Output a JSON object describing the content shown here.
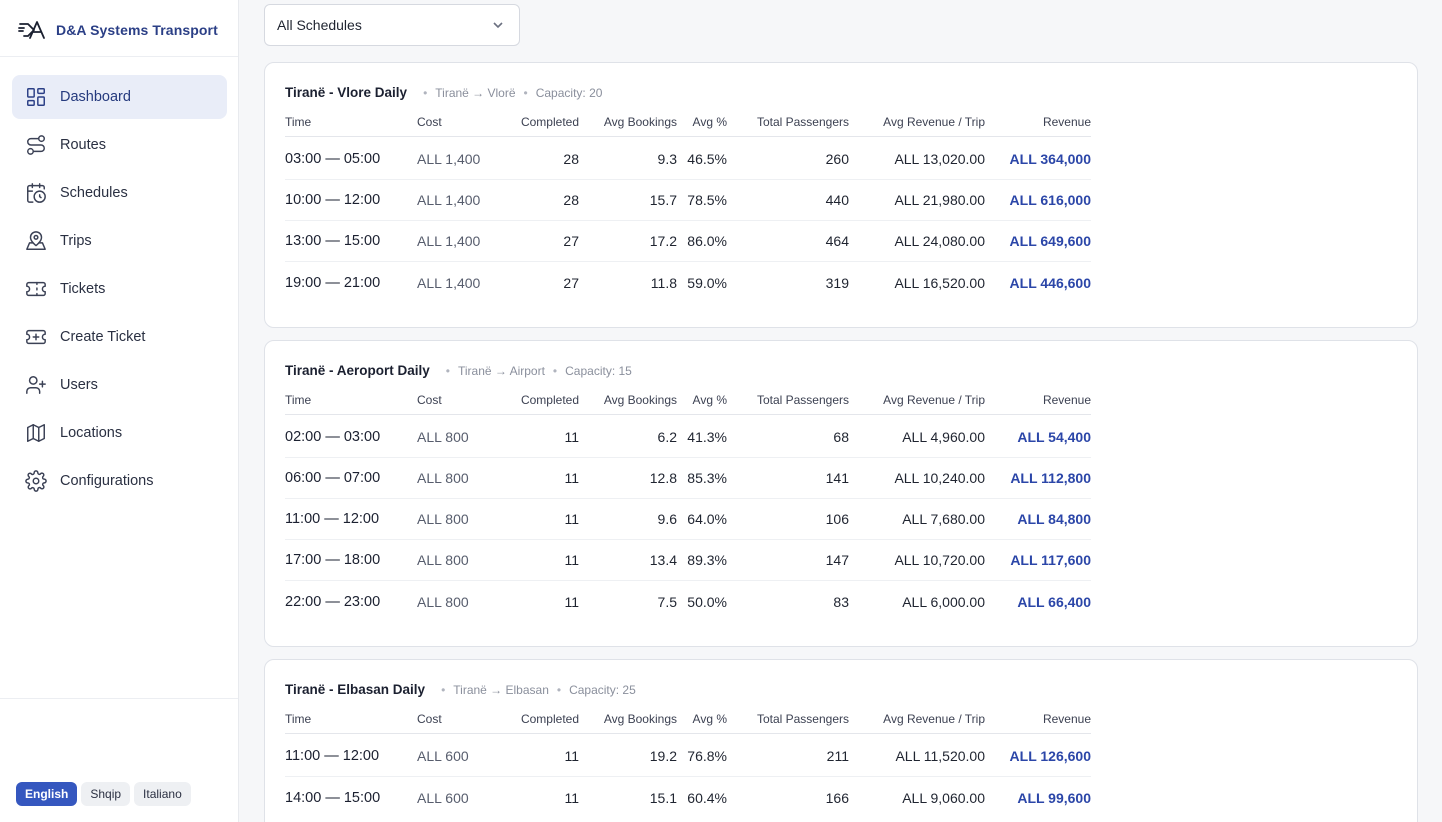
{
  "brand": {
    "name": "D&A Systems Transport"
  },
  "nav": [
    {
      "label": "Dashboard",
      "icon": "dashboard-icon",
      "active": true
    },
    {
      "label": "Routes",
      "icon": "routes-icon"
    },
    {
      "label": "Schedules",
      "icon": "calendar-clock-icon"
    },
    {
      "label": "Trips",
      "icon": "map-pin-icon"
    },
    {
      "label": "Tickets",
      "icon": "ticket-icon"
    },
    {
      "label": "Create Ticket",
      "icon": "ticket-plus-icon"
    },
    {
      "label": "Users",
      "icon": "user-plus-icon"
    },
    {
      "label": "Locations",
      "icon": "map-icon"
    },
    {
      "label": "Configurations",
      "icon": "gear-icon"
    }
  ],
  "languages": [
    "English",
    "Shqip",
    "Italiano"
  ],
  "active_language": "English",
  "filter": {
    "value": "All Schedules"
  },
  "columns": {
    "time": "Time",
    "cost": "Cost",
    "completed": "Completed",
    "avg_bookings": "Avg Bookings",
    "avg_pct": "Avg %",
    "total_passengers": "Total Passengers",
    "avg_revenue": "Avg Revenue / Trip",
    "revenue": "Revenue"
  },
  "schedules": [
    {
      "title": "Tiranë - Vlore Daily",
      "route": "Tiranë → Vlorë",
      "capacity": "Capacity: 20",
      "rows": [
        {
          "time": "03:00 — 05:00",
          "cost": "ALL 1,400",
          "completed": "28",
          "avg_bookings": "9.3",
          "avg_pct": "46.5%",
          "total_passengers": "260",
          "avg_revenue": "ALL 13,020.00",
          "revenue": "ALL 364,000"
        },
        {
          "time": "10:00 — 12:00",
          "cost": "ALL 1,400",
          "completed": "28",
          "avg_bookings": "15.7",
          "avg_pct": "78.5%",
          "total_passengers": "440",
          "avg_revenue": "ALL 21,980.00",
          "revenue": "ALL 616,000"
        },
        {
          "time": "13:00 — 15:00",
          "cost": "ALL 1,400",
          "completed": "27",
          "avg_bookings": "17.2",
          "avg_pct": "86.0%",
          "total_passengers": "464",
          "avg_revenue": "ALL 24,080.00",
          "revenue": "ALL 649,600"
        },
        {
          "time": "19:00 — 21:00",
          "cost": "ALL 1,400",
          "completed": "27",
          "avg_bookings": "11.8",
          "avg_pct": "59.0%",
          "total_passengers": "319",
          "avg_revenue": "ALL 16,520.00",
          "revenue": "ALL 446,600"
        }
      ]
    },
    {
      "title": "Tiranë - Aeroport Daily",
      "route": "Tiranë → Airport",
      "capacity": "Capacity: 15",
      "rows": [
        {
          "time": "02:00 — 03:00",
          "cost": "ALL 800",
          "completed": "11",
          "avg_bookings": "6.2",
          "avg_pct": "41.3%",
          "total_passengers": "68",
          "avg_revenue": "ALL 4,960.00",
          "revenue": "ALL 54,400"
        },
        {
          "time": "06:00 — 07:00",
          "cost": "ALL 800",
          "completed": "11",
          "avg_bookings": "12.8",
          "avg_pct": "85.3%",
          "total_passengers": "141",
          "avg_revenue": "ALL 10,240.00",
          "revenue": "ALL 112,800"
        },
        {
          "time": "11:00 — 12:00",
          "cost": "ALL 800",
          "completed": "11",
          "avg_bookings": "9.6",
          "avg_pct": "64.0%",
          "total_passengers": "106",
          "avg_revenue": "ALL 7,680.00",
          "revenue": "ALL 84,800"
        },
        {
          "time": "17:00 — 18:00",
          "cost": "ALL 800",
          "completed": "11",
          "avg_bookings": "13.4",
          "avg_pct": "89.3%",
          "total_passengers": "147",
          "avg_revenue": "ALL 10,720.00",
          "revenue": "ALL 117,600"
        },
        {
          "time": "22:00 — 23:00",
          "cost": "ALL 800",
          "completed": "11",
          "avg_bookings": "7.5",
          "avg_pct": "50.0%",
          "total_passengers": "83",
          "avg_revenue": "ALL 6,000.00",
          "revenue": "ALL 66,400"
        }
      ]
    },
    {
      "title": "Tiranë - Elbasan Daily",
      "route": "Tiranë → Elbasan",
      "capacity": "Capacity: 25",
      "rows": [
        {
          "time": "11:00 — 12:00",
          "cost": "ALL 600",
          "completed": "11",
          "avg_bookings": "19.2",
          "avg_pct": "76.8%",
          "total_passengers": "211",
          "avg_revenue": "ALL 11,520.00",
          "revenue": "ALL 126,600"
        },
        {
          "time": "14:00 — 15:00",
          "cost": "ALL 600",
          "completed": "11",
          "avg_bookings": "15.1",
          "avg_pct": "60.4%",
          "total_passengers": "166",
          "avg_revenue": "ALL 9,060.00",
          "revenue": "ALL 99,600"
        }
      ]
    }
  ],
  "colors": {
    "brand": "#2b3f86",
    "accent": "#3557bf",
    "revenue": "#2b46a8",
    "active_nav_bg": "#e9edf8"
  }
}
